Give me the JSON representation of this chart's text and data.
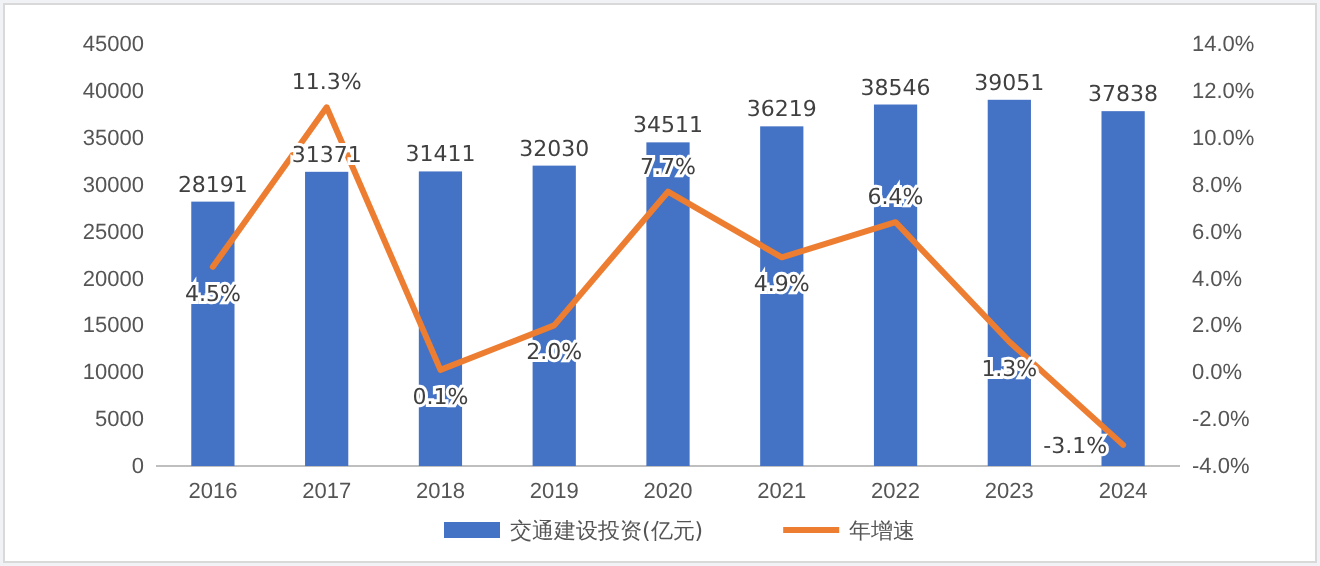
{
  "chart_data": {
    "type": "bar",
    "categories": [
      "2016",
      "2017",
      "2018",
      "2019",
      "2020",
      "2021",
      "2022",
      "2023",
      "2024"
    ],
    "series": [
      {
        "name": "交通建设投资(亿元)",
        "color": "#4472c4",
        "values": [
          28191,
          31371,
          31411,
          32030,
          34511,
          36219,
          38546,
          39051,
          37838
        ],
        "value_labels": [
          "28191",
          "31371",
          "31411",
          "32030",
          "34511",
          "36219",
          "38546",
          "39051",
          "37838"
        ]
      },
      {
        "name": "年增速",
        "type": "line",
        "axis": "y2",
        "color": "#ed7d31",
        "values": [
          4.5,
          11.3,
          0.1,
          2.0,
          7.7,
          4.9,
          6.4,
          1.3,
          -3.1
        ],
        "value_labels": [
          "4.5%",
          "11.3%",
          "0.1%",
          "2.0%",
          "7.7%",
          "4.9%",
          "6.4%",
          "1.3%",
          "-3.1%"
        ]
      }
    ],
    "ylim": [
      0,
      45000
    ],
    "yticks": [
      0,
      5000,
      10000,
      15000,
      20000,
      25000,
      30000,
      35000,
      40000,
      45000
    ],
    "y2lim": [
      -4,
      14
    ],
    "y2ticks": [
      {
        "value": -4,
        "label": "-4.0%"
      },
      {
        "value": -2,
        "label": "-2.0%"
      },
      {
        "value": 0,
        "label": "0.0%"
      },
      {
        "value": 2,
        "label": "2.0%"
      },
      {
        "value": 4,
        "label": "4.0%"
      },
      {
        "value": 6,
        "label": "6.0%"
      },
      {
        "value": 8,
        "label": "8.0%"
      },
      {
        "value": 10,
        "label": "10.0%"
      },
      {
        "value": 12,
        "label": "12.0%"
      },
      {
        "value": 14,
        "label": "14.0%"
      }
    ],
    "legend": "bottom",
    "line_style": "solid",
    "marker": "none"
  }
}
